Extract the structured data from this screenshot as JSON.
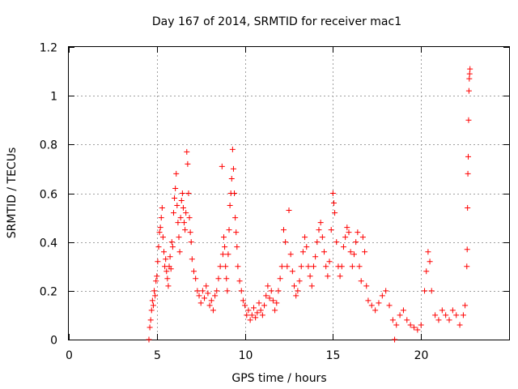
{
  "chart_data": {
    "type": "scatter",
    "title": "Day 167 of 2014, SRMTID for receiver mac1",
    "xlabel": "GPS time / hours",
    "ylabel": "SRMTID / TECUs",
    "xlim": [
      0,
      25
    ],
    "ylim": [
      0,
      1.2
    ],
    "xticks": [
      "0",
      "5",
      "10",
      "15",
      "20"
    ],
    "xtick_values": [
      0,
      5,
      10,
      15,
      20
    ],
    "yticks": [
      "0",
      "0.2",
      "0.4",
      "0.6",
      "0.8",
      "1",
      "1.2"
    ],
    "ytick_values": [
      0,
      0.2,
      0.4,
      0.6,
      0.8,
      1.0,
      1.2
    ],
    "grid": true,
    "marker": "+",
    "color": "#ff0000",
    "series": [
      {
        "name": "SRMTID mac1",
        "points": [
          [
            4.55,
            0.0
          ],
          [
            4.6,
            0.05
          ],
          [
            4.65,
            0.08
          ],
          [
            4.7,
            0.12
          ],
          [
            4.75,
            0.16
          ],
          [
            4.8,
            0.14
          ],
          [
            4.85,
            0.2
          ],
          [
            4.9,
            0.18
          ],
          [
            4.95,
            0.24
          ],
          [
            5.0,
            0.26
          ],
          [
            5.05,
            0.32
          ],
          [
            5.1,
            0.38
          ],
          [
            5.15,
            0.44
          ],
          [
            5.2,
            0.46
          ],
          [
            5.25,
            0.5
          ],
          [
            5.3,
            0.54
          ],
          [
            5.35,
            0.42
          ],
          [
            5.4,
            0.36
          ],
          [
            5.45,
            0.3
          ],
          [
            5.5,
            0.33
          ],
          [
            5.55,
            0.28
          ],
          [
            5.6,
            0.25
          ],
          [
            5.65,
            0.22
          ],
          [
            5.7,
            0.3
          ],
          [
            5.75,
            0.34
          ],
          [
            5.8,
            0.29
          ],
          [
            5.85,
            0.4
          ],
          [
            5.9,
            0.38
          ],
          [
            5.95,
            0.52
          ],
          [
            6.0,
            0.58
          ],
          [
            6.05,
            0.62
          ],
          [
            6.1,
            0.68
          ],
          [
            6.15,
            0.55
          ],
          [
            6.2,
            0.48
          ],
          [
            6.25,
            0.42
          ],
          [
            6.3,
            0.36
          ],
          [
            6.35,
            0.5
          ],
          [
            6.4,
            0.57
          ],
          [
            6.45,
            0.6
          ],
          [
            6.5,
            0.54
          ],
          [
            6.55,
            0.48
          ],
          [
            6.6,
            0.45
          ],
          [
            6.65,
            0.52
          ],
          [
            6.7,
            0.77
          ],
          [
            6.75,
            0.72
          ],
          [
            6.8,
            0.6
          ],
          [
            6.85,
            0.5
          ],
          [
            6.9,
            0.44
          ],
          [
            6.95,
            0.4
          ],
          [
            7.0,
            0.33
          ],
          [
            7.1,
            0.28
          ],
          [
            7.2,
            0.25
          ],
          [
            7.3,
            0.2
          ],
          [
            7.4,
            0.18
          ],
          [
            7.5,
            0.15
          ],
          [
            7.6,
            0.2
          ],
          [
            7.7,
            0.17
          ],
          [
            7.8,
            0.22
          ],
          [
            7.9,
            0.19
          ],
          [
            8.0,
            0.14
          ],
          [
            8.1,
            0.16
          ],
          [
            8.2,
            0.12
          ],
          [
            8.3,
            0.18
          ],
          [
            8.4,
            0.2
          ],
          [
            8.5,
            0.25
          ],
          [
            8.6,
            0.3
          ],
          [
            8.7,
            0.71
          ],
          [
            8.75,
            0.35
          ],
          [
            8.8,
            0.42
          ],
          [
            8.85,
            0.38
          ],
          [
            8.9,
            0.3
          ],
          [
            8.95,
            0.25
          ],
          [
            9.0,
            0.2
          ],
          [
            9.05,
            0.35
          ],
          [
            9.1,
            0.45
          ],
          [
            9.15,
            0.55
          ],
          [
            9.2,
            0.6
          ],
          [
            9.25,
            0.66
          ],
          [
            9.3,
            0.78
          ],
          [
            9.35,
            0.7
          ],
          [
            9.4,
            0.6
          ],
          [
            9.45,
            0.5
          ],
          [
            9.5,
            0.44
          ],
          [
            9.55,
            0.38
          ],
          [
            9.6,
            0.3
          ],
          [
            9.7,
            0.24
          ],
          [
            9.8,
            0.2
          ],
          [
            9.9,
            0.16
          ],
          [
            10.0,
            0.14
          ],
          [
            10.1,
            0.1
          ],
          [
            10.2,
            0.12
          ],
          [
            10.3,
            0.08
          ],
          [
            10.4,
            0.1
          ],
          [
            10.5,
            0.13
          ],
          [
            10.6,
            0.09
          ],
          [
            10.7,
            0.11
          ],
          [
            10.8,
            0.15
          ],
          [
            10.9,
            0.12
          ],
          [
            11.0,
            0.1
          ],
          [
            11.1,
            0.14
          ],
          [
            11.2,
            0.18
          ],
          [
            11.3,
            0.22
          ],
          [
            11.4,
            0.17
          ],
          [
            11.5,
            0.2
          ],
          [
            11.6,
            0.16
          ],
          [
            11.7,
            0.12
          ],
          [
            11.8,
            0.15
          ],
          [
            11.9,
            0.2
          ],
          [
            12.0,
            0.25
          ],
          [
            12.1,
            0.3
          ],
          [
            12.2,
            0.45
          ],
          [
            12.3,
            0.4
          ],
          [
            12.4,
            0.3
          ],
          [
            12.5,
            0.53
          ],
          [
            12.6,
            0.35
          ],
          [
            12.7,
            0.28
          ],
          [
            12.8,
            0.22
          ],
          [
            12.9,
            0.18
          ],
          [
            13.0,
            0.2
          ],
          [
            13.1,
            0.24
          ],
          [
            13.2,
            0.3
          ],
          [
            13.3,
            0.36
          ],
          [
            13.4,
            0.42
          ],
          [
            13.5,
            0.38
          ],
          [
            13.6,
            0.3
          ],
          [
            13.7,
            0.26
          ],
          [
            13.8,
            0.22
          ],
          [
            13.9,
            0.3
          ],
          [
            14.0,
            0.34
          ],
          [
            14.1,
            0.4
          ],
          [
            14.2,
            0.45
          ],
          [
            14.3,
            0.48
          ],
          [
            14.4,
            0.42
          ],
          [
            14.5,
            0.36
          ],
          [
            14.6,
            0.3
          ],
          [
            14.7,
            0.26
          ],
          [
            14.8,
            0.32
          ],
          [
            14.9,
            0.45
          ],
          [
            15.0,
            0.6
          ],
          [
            15.05,
            0.56
          ],
          [
            15.1,
            0.52
          ],
          [
            15.2,
            0.4
          ],
          [
            15.3,
            0.3
          ],
          [
            15.4,
            0.26
          ],
          [
            15.5,
            0.3
          ],
          [
            15.6,
            0.38
          ],
          [
            15.7,
            0.42
          ],
          [
            15.8,
            0.46
          ],
          [
            15.9,
            0.44
          ],
          [
            16.0,
            0.36
          ],
          [
            16.1,
            0.3
          ],
          [
            16.2,
            0.35
          ],
          [
            16.3,
            0.4
          ],
          [
            16.4,
            0.44
          ],
          [
            16.5,
            0.3
          ],
          [
            16.6,
            0.24
          ],
          [
            16.7,
            0.42
          ],
          [
            16.8,
            0.36
          ],
          [
            16.9,
            0.22
          ],
          [
            17.0,
            0.16
          ],
          [
            17.2,
            0.14
          ],
          [
            17.4,
            0.12
          ],
          [
            17.6,
            0.15
          ],
          [
            17.8,
            0.18
          ],
          [
            18.0,
            0.2
          ],
          [
            18.2,
            0.14
          ],
          [
            18.4,
            0.08
          ],
          [
            18.5,
            0.0
          ],
          [
            18.6,
            0.06
          ],
          [
            18.8,
            0.1
          ],
          [
            19.0,
            0.12
          ],
          [
            19.2,
            0.08
          ],
          [
            19.4,
            0.06
          ],
          [
            19.6,
            0.05
          ],
          [
            19.8,
            0.04
          ],
          [
            20.0,
            0.06
          ],
          [
            20.2,
            0.2
          ],
          [
            20.3,
            0.28
          ],
          [
            20.4,
            0.36
          ],
          [
            20.5,
            0.32
          ],
          [
            20.6,
            0.2
          ],
          [
            20.8,
            0.1
          ],
          [
            21.0,
            0.08
          ],
          [
            21.2,
            0.12
          ],
          [
            21.4,
            0.1
          ],
          [
            21.6,
            0.08
          ],
          [
            21.8,
            0.12
          ],
          [
            22.0,
            0.1
          ],
          [
            22.2,
            0.06
          ],
          [
            22.4,
            0.1
          ],
          [
            22.5,
            0.14
          ],
          [
            22.6,
            0.3
          ],
          [
            22.62,
            0.37
          ],
          [
            22.64,
            0.54
          ],
          [
            22.66,
            0.68
          ],
          [
            22.68,
            0.75
          ],
          [
            22.7,
            0.9
          ],
          [
            22.72,
            1.02
          ],
          [
            22.74,
            1.07
          ],
          [
            22.76,
            1.09
          ],
          [
            22.78,
            1.11
          ]
        ]
      }
    ]
  }
}
